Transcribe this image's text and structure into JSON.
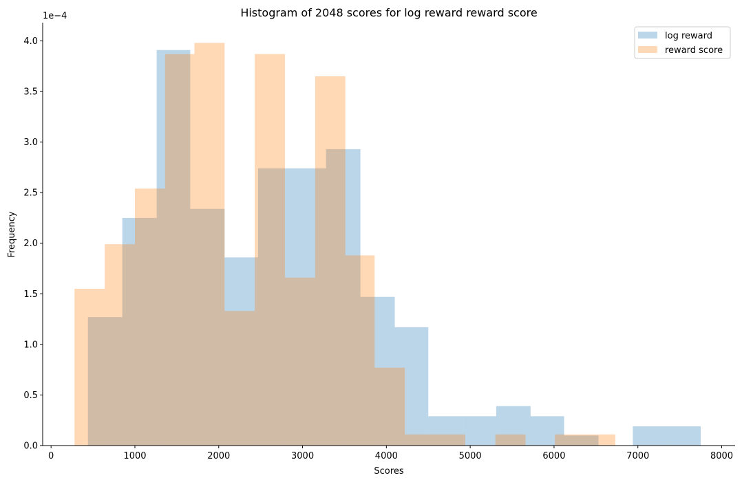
{
  "chart_data": {
    "type": "histogram",
    "title": "Histogram of 2048 scores for log reward reward score",
    "xlabel": "Scores",
    "ylabel": "Frequency",
    "y_offset_label": "1e−4",
    "xlim": [
      -100,
      8160
    ],
    "ylim": [
      0,
      4.18
    ],
    "xticks": [
      0,
      1000,
      2000,
      3000,
      4000,
      5000,
      6000,
      7000,
      8000
    ],
    "xtick_labels": [
      "0",
      "1000",
      "2000",
      "3000",
      "4000",
      "5000",
      "6000",
      "7000",
      "8000"
    ],
    "yticks": [
      0.0,
      0.5,
      1.0,
      1.5,
      2.0,
      2.5,
      3.0,
      3.5,
      4.0
    ],
    "ytick_labels": [
      "0.0",
      "0.5",
      "1.0",
      "1.5",
      "2.0",
      "2.5",
      "3.0",
      "3.5",
      "4.0"
    ],
    "legend_position": "top-right",
    "grid": false,
    "series": [
      {
        "name": "log reward",
        "color": "#1f77b4",
        "alpha": 0.3,
        "bins": [
          {
            "x0": 440,
            "x1": 850,
            "value": 1.27
          },
          {
            "x0": 850,
            "x1": 1260,
            "value": 2.25
          },
          {
            "x0": 1260,
            "x1": 1660,
            "value": 3.91
          },
          {
            "x0": 1660,
            "x1": 2070,
            "value": 2.34
          },
          {
            "x0": 2070,
            "x1": 2470,
            "value": 1.86
          },
          {
            "x0": 2470,
            "x1": 2880,
            "value": 2.74
          },
          {
            "x0": 2880,
            "x1": 3280,
            "value": 2.74
          },
          {
            "x0": 3280,
            "x1": 3690,
            "value": 2.93
          },
          {
            "x0": 3690,
            "x1": 4100,
            "value": 1.47
          },
          {
            "x0": 4100,
            "x1": 4500,
            "value": 1.17
          },
          {
            "x0": 4500,
            "x1": 4910,
            "value": 0.29
          },
          {
            "x0": 4910,
            "x1": 5310,
            "value": 0.29
          },
          {
            "x0": 5310,
            "x1": 5720,
            "value": 0.39
          },
          {
            "x0": 5720,
            "x1": 6120,
            "value": 0.29
          },
          {
            "x0": 6120,
            "x1": 6530,
            "value": 0.1
          },
          {
            "x0": 6530,
            "x1": 6940,
            "value": 0.0
          },
          {
            "x0": 6940,
            "x1": 7340,
            "value": 0.19
          },
          {
            "x0": 7340,
            "x1": 7750,
            "value": 0.19
          }
        ]
      },
      {
        "name": "reward score",
        "color": "#ff7f0e",
        "alpha": 0.3,
        "bins": [
          {
            "x0": 280,
            "x1": 640,
            "value": 1.55
          },
          {
            "x0": 640,
            "x1": 1000,
            "value": 1.99
          },
          {
            "x0": 1000,
            "x1": 1360,
            "value": 2.54
          },
          {
            "x0": 1360,
            "x1": 1710,
            "value": 3.87
          },
          {
            "x0": 1710,
            "x1": 2070,
            "value": 3.98
          },
          {
            "x0": 2070,
            "x1": 2430,
            "value": 1.33
          },
          {
            "x0": 2430,
            "x1": 2790,
            "value": 3.87
          },
          {
            "x0": 2790,
            "x1": 3150,
            "value": 1.66
          },
          {
            "x0": 3150,
            "x1": 3510,
            "value": 3.65
          },
          {
            "x0": 3510,
            "x1": 3860,
            "value": 1.88
          },
          {
            "x0": 3860,
            "x1": 4220,
            "value": 0.77
          },
          {
            "x0": 4220,
            "x1": 4580,
            "value": 0.11
          },
          {
            "x0": 4580,
            "x1": 4940,
            "value": 0.11
          },
          {
            "x0": 4940,
            "x1": 5300,
            "value": 0.0
          },
          {
            "x0": 5300,
            "x1": 5660,
            "value": 0.11
          },
          {
            "x0": 5660,
            "x1": 6010,
            "value": 0.0
          },
          {
            "x0": 6010,
            "x1": 6370,
            "value": 0.11
          },
          {
            "x0": 6370,
            "x1": 6730,
            "value": 0.11
          }
        ]
      }
    ]
  }
}
